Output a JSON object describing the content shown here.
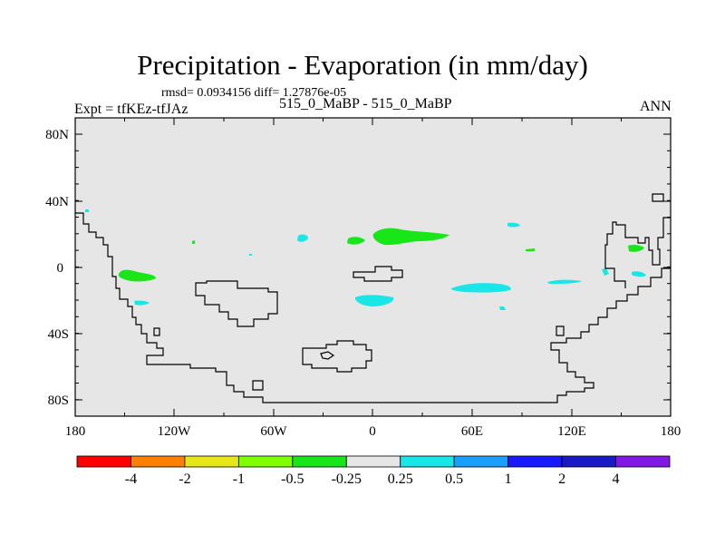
{
  "title": "Precipitation - Evaporation (in mm/day)",
  "stats": "rmsd= 0.0934156 diff= 1.27876e-05",
  "left_label": "Expt = tfKEz-tfJAz",
  "center_label": "515_0_MaBP - 515_0_MaBP",
  "right_label": "ANN",
  "axes": {
    "lat_ticks": [
      "80N",
      "40N",
      "0",
      "40S",
      "80S"
    ],
    "lon_ticks": [
      "180",
      "120W",
      "60W",
      "0",
      "60E",
      "120E",
      "180"
    ]
  },
  "colorbar": {
    "colors": [
      "#ff0000",
      "#ff8000",
      "#e6e619",
      "#80ff00",
      "#19e619",
      "#e6e6e6",
      "#19e6e6",
      "#19a0ff",
      "#1919ff",
      "#1919c8",
      "#8019e6"
    ],
    "labels": [
      "-4",
      "-2",
      "-1",
      "-0.5",
      "-0.25",
      "0.25",
      "0.5",
      "1",
      "2",
      "4"
    ]
  },
  "map_colors": {
    "background": "#e6e6e6",
    "positive_small": "#19e6e6",
    "negative_small": "#19e619",
    "coast": "#000000"
  }
}
